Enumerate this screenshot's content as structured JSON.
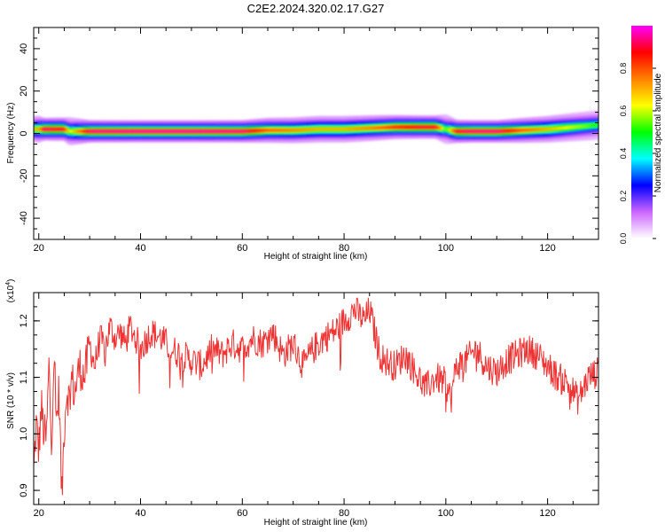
{
  "title": "C2E2.2024.320.02.17.G27",
  "chart_data": [
    {
      "type": "heatmap",
      "title": "",
      "xlabel": "Height of straight line (km)",
      "ylabel": "Frequency (Hz)",
      "xlim": [
        19,
        130
      ],
      "ylim": [
        -50,
        50
      ],
      "x_ticks": [
        20,
        40,
        60,
        80,
        100,
        120
      ],
      "y_ticks": [
        -40,
        -20,
        0,
        20,
        40
      ],
      "ridge": {
        "description_value": "dominant frequency vs height",
        "x": [
          20,
          21,
          23,
          25,
          26,
          30,
          40,
          50,
          60,
          65,
          70,
          75,
          80,
          85,
          90,
          95,
          98,
          100,
          102,
          105,
          110,
          115,
          120,
          125,
          130
        ],
        "y": [
          2,
          2,
          2,
          2,
          1,
          1,
          1,
          1,
          1,
          1.5,
          1.5,
          2,
          2,
          2.5,
          3,
          3,
          3,
          2,
          1,
          1,
          1,
          1.5,
          2,
          3,
          4
        ],
        "amplitude": [
          0.7,
          0.95,
          0.9,
          0.9,
          0.6,
          0.95,
          0.97,
          0.97,
          0.95,
          0.8,
          0.75,
          0.7,
          0.7,
          0.75,
          0.85,
          0.9,
          0.9,
          0.5,
          0.9,
          0.95,
          0.95,
          0.8,
          0.7,
          0.6,
          0.5
        ]
      },
      "colorbar": {
        "label": "Normalized spectral amplitude",
        "range": [
          0,
          1
        ],
        "ticks": [
          "0.0",
          "0.2",
          "0.4",
          "0.6",
          "0.8"
        ],
        "colors": [
          "#ffffff",
          "#cc66ff",
          "#0000ff",
          "#00ffff",
          "#00ff00",
          "#ffff00",
          "#ff8000",
          "#ff0000",
          "#ff00ff"
        ]
      }
    },
    {
      "type": "line",
      "title": "",
      "xlabel": "Height of straight line (km)",
      "ylabel": "SNR (10 * v/v)",
      "scale_note": "(x10",
      "scale_exp": "4",
      "scale_close": ")",
      "xlim": [
        19,
        130
      ],
      "ylim": [
        0.875,
        1.25
      ],
      "x_ticks": [
        20,
        40,
        60,
        80,
        100,
        120
      ],
      "y_ticks": [
        "0.9",
        "1.0",
        "1.1",
        "1.2"
      ],
      "color": "#ee3333",
      "series": [
        {
          "x": [
            19,
            19.5,
            20,
            20.5,
            21,
            21.5,
            22,
            22.5,
            23,
            23.5,
            24,
            24.5,
            25,
            25.5,
            26,
            26.5,
            27,
            28,
            29,
            30,
            31,
            32,
            33,
            34,
            35,
            36,
            37,
            38,
            39,
            40,
            42,
            44,
            46,
            48,
            50,
            52,
            54,
            56,
            58,
            60,
            62,
            64,
            66,
            68,
            70,
            72,
            74,
            76,
            78,
            80,
            81,
            82,
            83,
            84,
            85,
            86,
            87,
            88,
            90,
            92,
            94,
            96,
            98,
            100,
            101,
            102,
            104,
            106,
            108,
            110,
            112,
            114,
            116,
            118,
            120,
            122,
            124,
            126,
            128,
            130
          ],
          "y": [
            0.93,
            1.02,
            0.97,
            1.05,
            1.0,
            0.99,
            1.12,
            0.98,
            1.15,
            1.02,
            1.08,
            0.88,
            1.01,
            1.08,
            1.06,
            1.1,
            1.07,
            1.12,
            1.1,
            1.16,
            1.12,
            1.17,
            1.15,
            1.19,
            1.17,
            1.18,
            1.16,
            1.19,
            1.17,
            1.15,
            1.18,
            1.17,
            1.15,
            1.14,
            1.13,
            1.12,
            1.15,
            1.14,
            1.16,
            1.15,
            1.17,
            1.16,
            1.18,
            1.14,
            1.16,
            1.12,
            1.15,
            1.17,
            1.18,
            1.2,
            1.21,
            1.22,
            1.21,
            1.2,
            1.22,
            1.18,
            1.14,
            1.13,
            1.12,
            1.14,
            1.11,
            1.08,
            1.1,
            1.09,
            1.06,
            1.12,
            1.13,
            1.15,
            1.12,
            1.11,
            1.13,
            1.14,
            1.15,
            1.14,
            1.12,
            1.1,
            1.09,
            1.06,
            1.1,
            1.11
          ]
        }
      ]
    }
  ]
}
